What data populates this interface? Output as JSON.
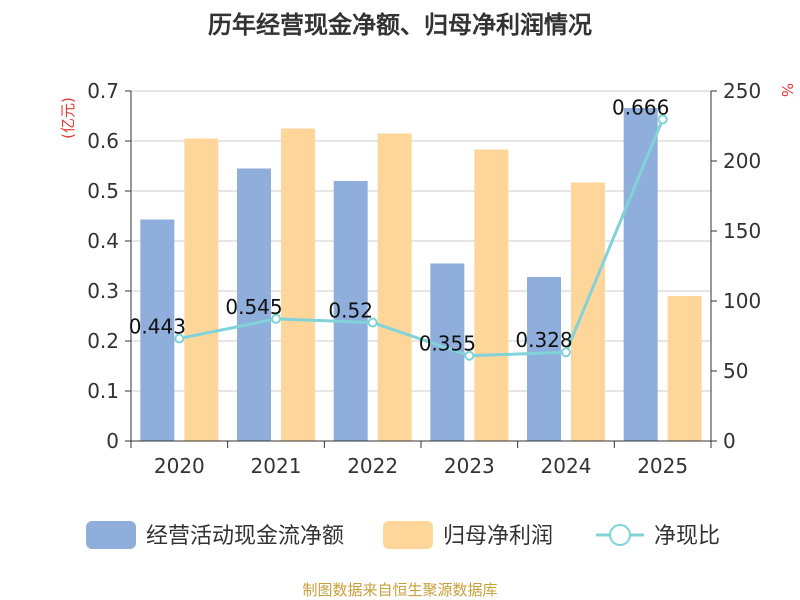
{
  "chart_data": {
    "type": "bar",
    "title": "历年经营现金净额、归母净利润情况",
    "categories": [
      "2020",
      "2021",
      "2022",
      "2023",
      "2024",
      "2025"
    ],
    "left_axis": {
      "unit": "(亿元)",
      "ylim": [
        0,
        0.7
      ],
      "ticks": [
        "0",
        "0.1",
        "0.2",
        "0.3",
        "0.4",
        "0.5",
        "0.6",
        "0.7"
      ]
    },
    "right_axis": {
      "unit": "%",
      "ylim": [
        0,
        250
      ],
      "ticks": [
        "0",
        "50",
        "100",
        "150",
        "200",
        "250"
      ]
    },
    "series": [
      {
        "name": "经营活动现金流净额",
        "type": "bar",
        "axis": "left",
        "color": "#8faedb",
        "values": [
          0.443,
          0.545,
          0.52,
          0.355,
          0.328,
          0.666
        ]
      },
      {
        "name": "归母净利润",
        "type": "bar",
        "axis": "left",
        "color": "#ffd699",
        "values": [
          0.605,
          0.625,
          0.615,
          0.583,
          0.517,
          0.29
        ]
      },
      {
        "name": "净现比",
        "type": "line",
        "axis": "right",
        "color": "#7fd3d9",
        "values": [
          73.2,
          87.2,
          84.6,
          60.9,
          63.4,
          229.7
        ],
        "labels": [
          "0.443",
          "0.545",
          "0.52",
          "0.355",
          "0.328",
          "0.666"
        ]
      }
    ],
    "legend_position": "bottom",
    "grid": true
  },
  "source": "制图数据来自恒生聚源数据库",
  "colors": {
    "unit": "#e53935",
    "source": "#c8a03c",
    "axis": "#333333",
    "grid": "#cccccc"
  }
}
